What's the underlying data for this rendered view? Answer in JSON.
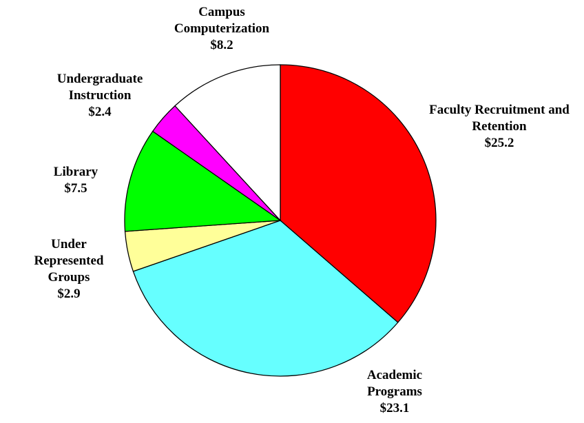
{
  "chart_data": {
    "type": "pie",
    "categories": [
      "Faculty Recruitment and Retention",
      "Academic Programs",
      "Under Represented Groups",
      "Library",
      "Undergraduate Instruction",
      "Campus Computerization"
    ],
    "values": [
      25.2,
      23.1,
      2.9,
      7.5,
      2.4,
      8.2
    ],
    "value_labels": [
      "$25.2",
      "$23.1",
      "$2.9",
      "$7.5",
      "$2.4",
      "$8.2"
    ],
    "colors": [
      "#ff0000",
      "#66ffff",
      "#ffff99",
      "#00ff00",
      "#ff00ff",
      "#ffffff"
    ]
  }
}
